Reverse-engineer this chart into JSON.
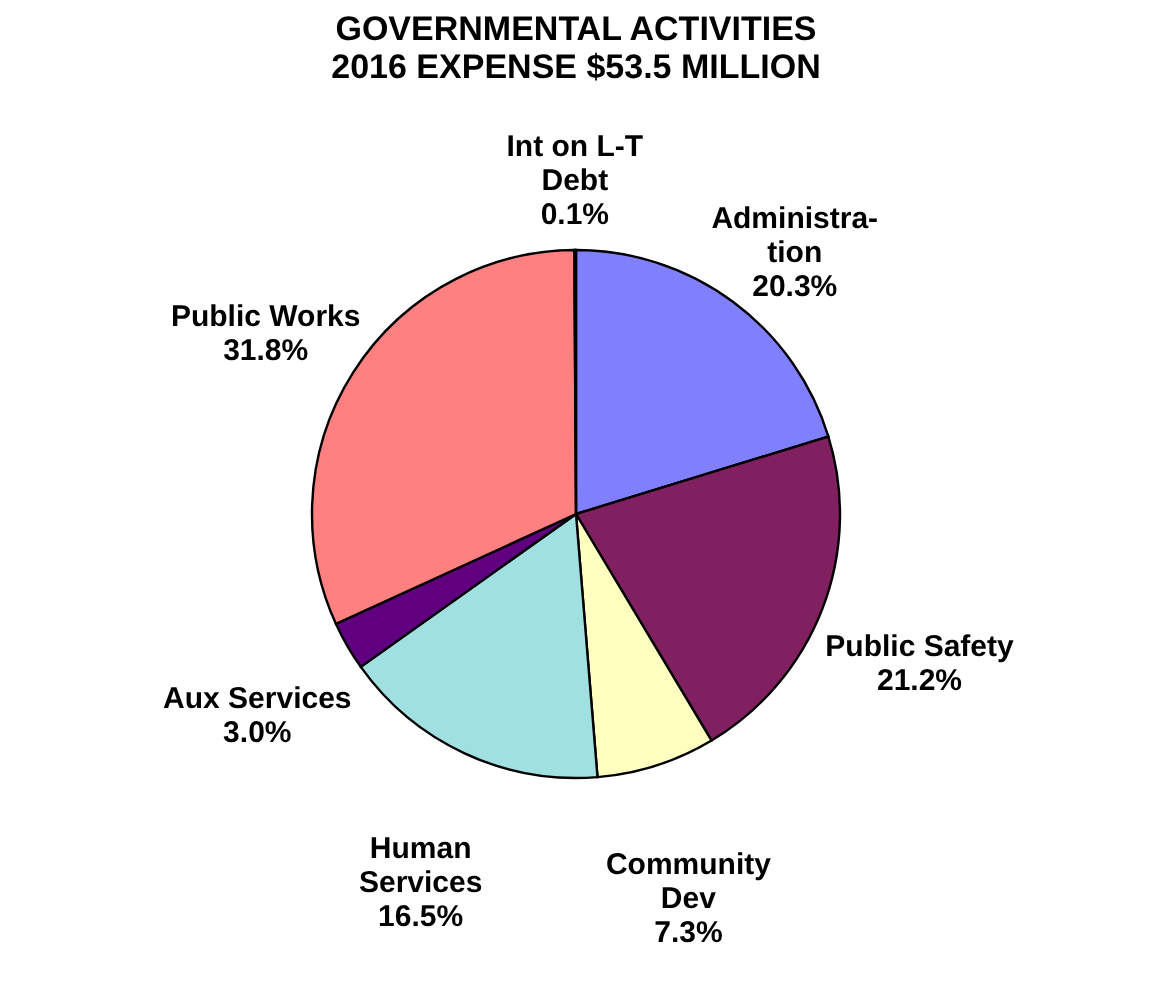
{
  "chart_data": {
    "type": "pie",
    "title": "GOVERNMENTAL ACTIVITIES\n2016 EXPENSE $53.5 MILLION",
    "categories": [
      "Administra-\ntion",
      "Public Safety",
      "Community\nDev",
      "Human\nServices",
      "Aux Services",
      "Public Works",
      "Int on L-T\nDebt"
    ],
    "values": [
      20.3,
      21.2,
      7.3,
      16.5,
      3.0,
      31.8,
      0.1
    ],
    "value_labels": [
      "20.3%",
      "21.2%",
      "7.3%",
      "16.5%",
      "3.0%",
      "31.8%",
      "0.1%"
    ],
    "colors": [
      "#8080ff",
      "#802060",
      "#ffffc0",
      "#a0e0e0",
      "#600080",
      "#ff8080",
      "#0066cc"
    ]
  }
}
